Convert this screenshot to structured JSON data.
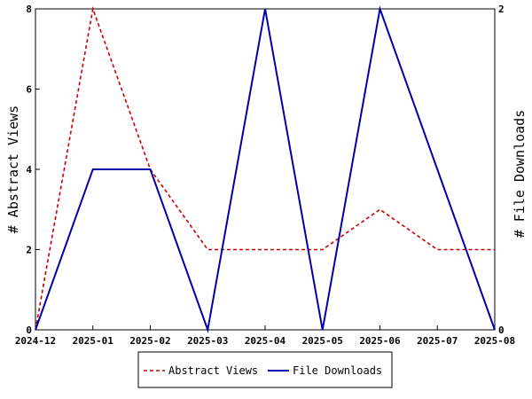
{
  "chart_data": {
    "type": "line",
    "x": [
      "2024-12",
      "2025-01",
      "2025-02",
      "2025-03",
      "2025-04",
      "2025-05",
      "2025-06",
      "2025-07",
      "2025-08"
    ],
    "series": [
      {
        "name": "Abstract Views",
        "axis": "left",
        "color": "#cc0000",
        "style": "dashed",
        "values": [
          0,
          8,
          4,
          2,
          2,
          2,
          3,
          2,
          2
        ]
      },
      {
        "name": "File Downloads",
        "axis": "right",
        "color": "#0000aa",
        "style": "solid",
        "values": [
          0,
          1,
          1,
          0,
          2,
          0,
          2,
          1,
          0
        ]
      }
    ],
    "ylabel": "# Abstract Views",
    "y2label": "# File Downloads",
    "ylim": [
      0,
      8
    ],
    "y2lim": [
      0,
      2
    ],
    "yticks": [
      "0",
      "2",
      "4",
      "6",
      "8"
    ],
    "y2ticks": [
      "0",
      "2"
    ],
    "grid": false,
    "legend_position": "bottom-center"
  }
}
